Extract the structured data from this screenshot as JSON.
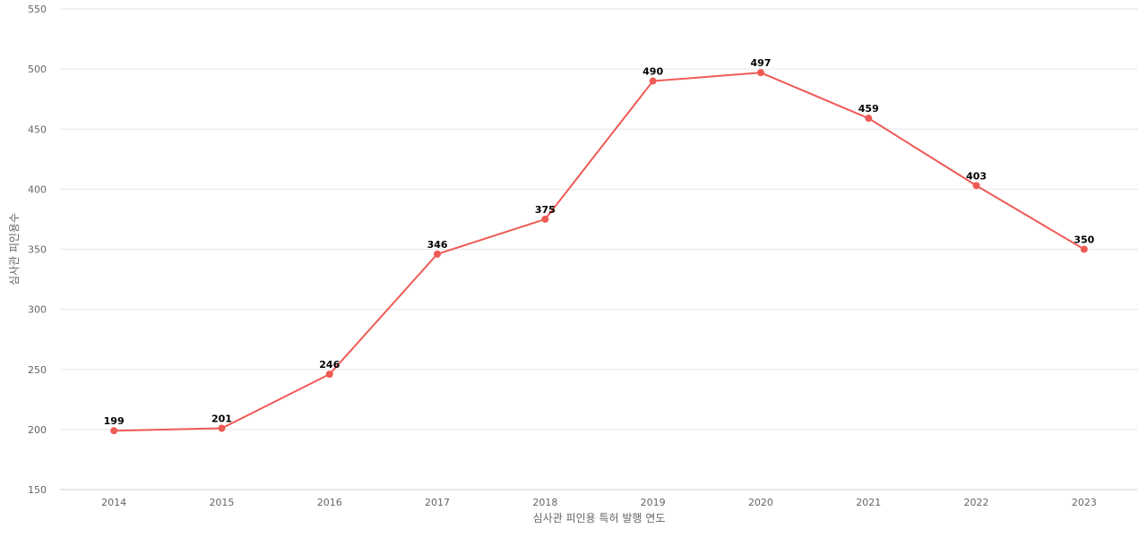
{
  "chart_data": {
    "type": "line",
    "title": "",
    "xlabel": "심사관 피인용 특허 발행 연도",
    "ylabel": "심사관 피인용수",
    "categories": [
      "2014",
      "2015",
      "2016",
      "2017",
      "2018",
      "2019",
      "2020",
      "2021",
      "2022",
      "2023"
    ],
    "series": [
      {
        "values": [
          199,
          201,
          246,
          346,
          375,
          490,
          497,
          459,
          403,
          350
        ]
      }
    ],
    "ylim": [
      150,
      550
    ],
    "yticks": [
      150,
      200,
      250,
      300,
      350,
      400,
      450,
      500,
      550
    ],
    "grid": true,
    "data_labels": true,
    "colors": {
      "series": "#ee5a55"
    }
  }
}
